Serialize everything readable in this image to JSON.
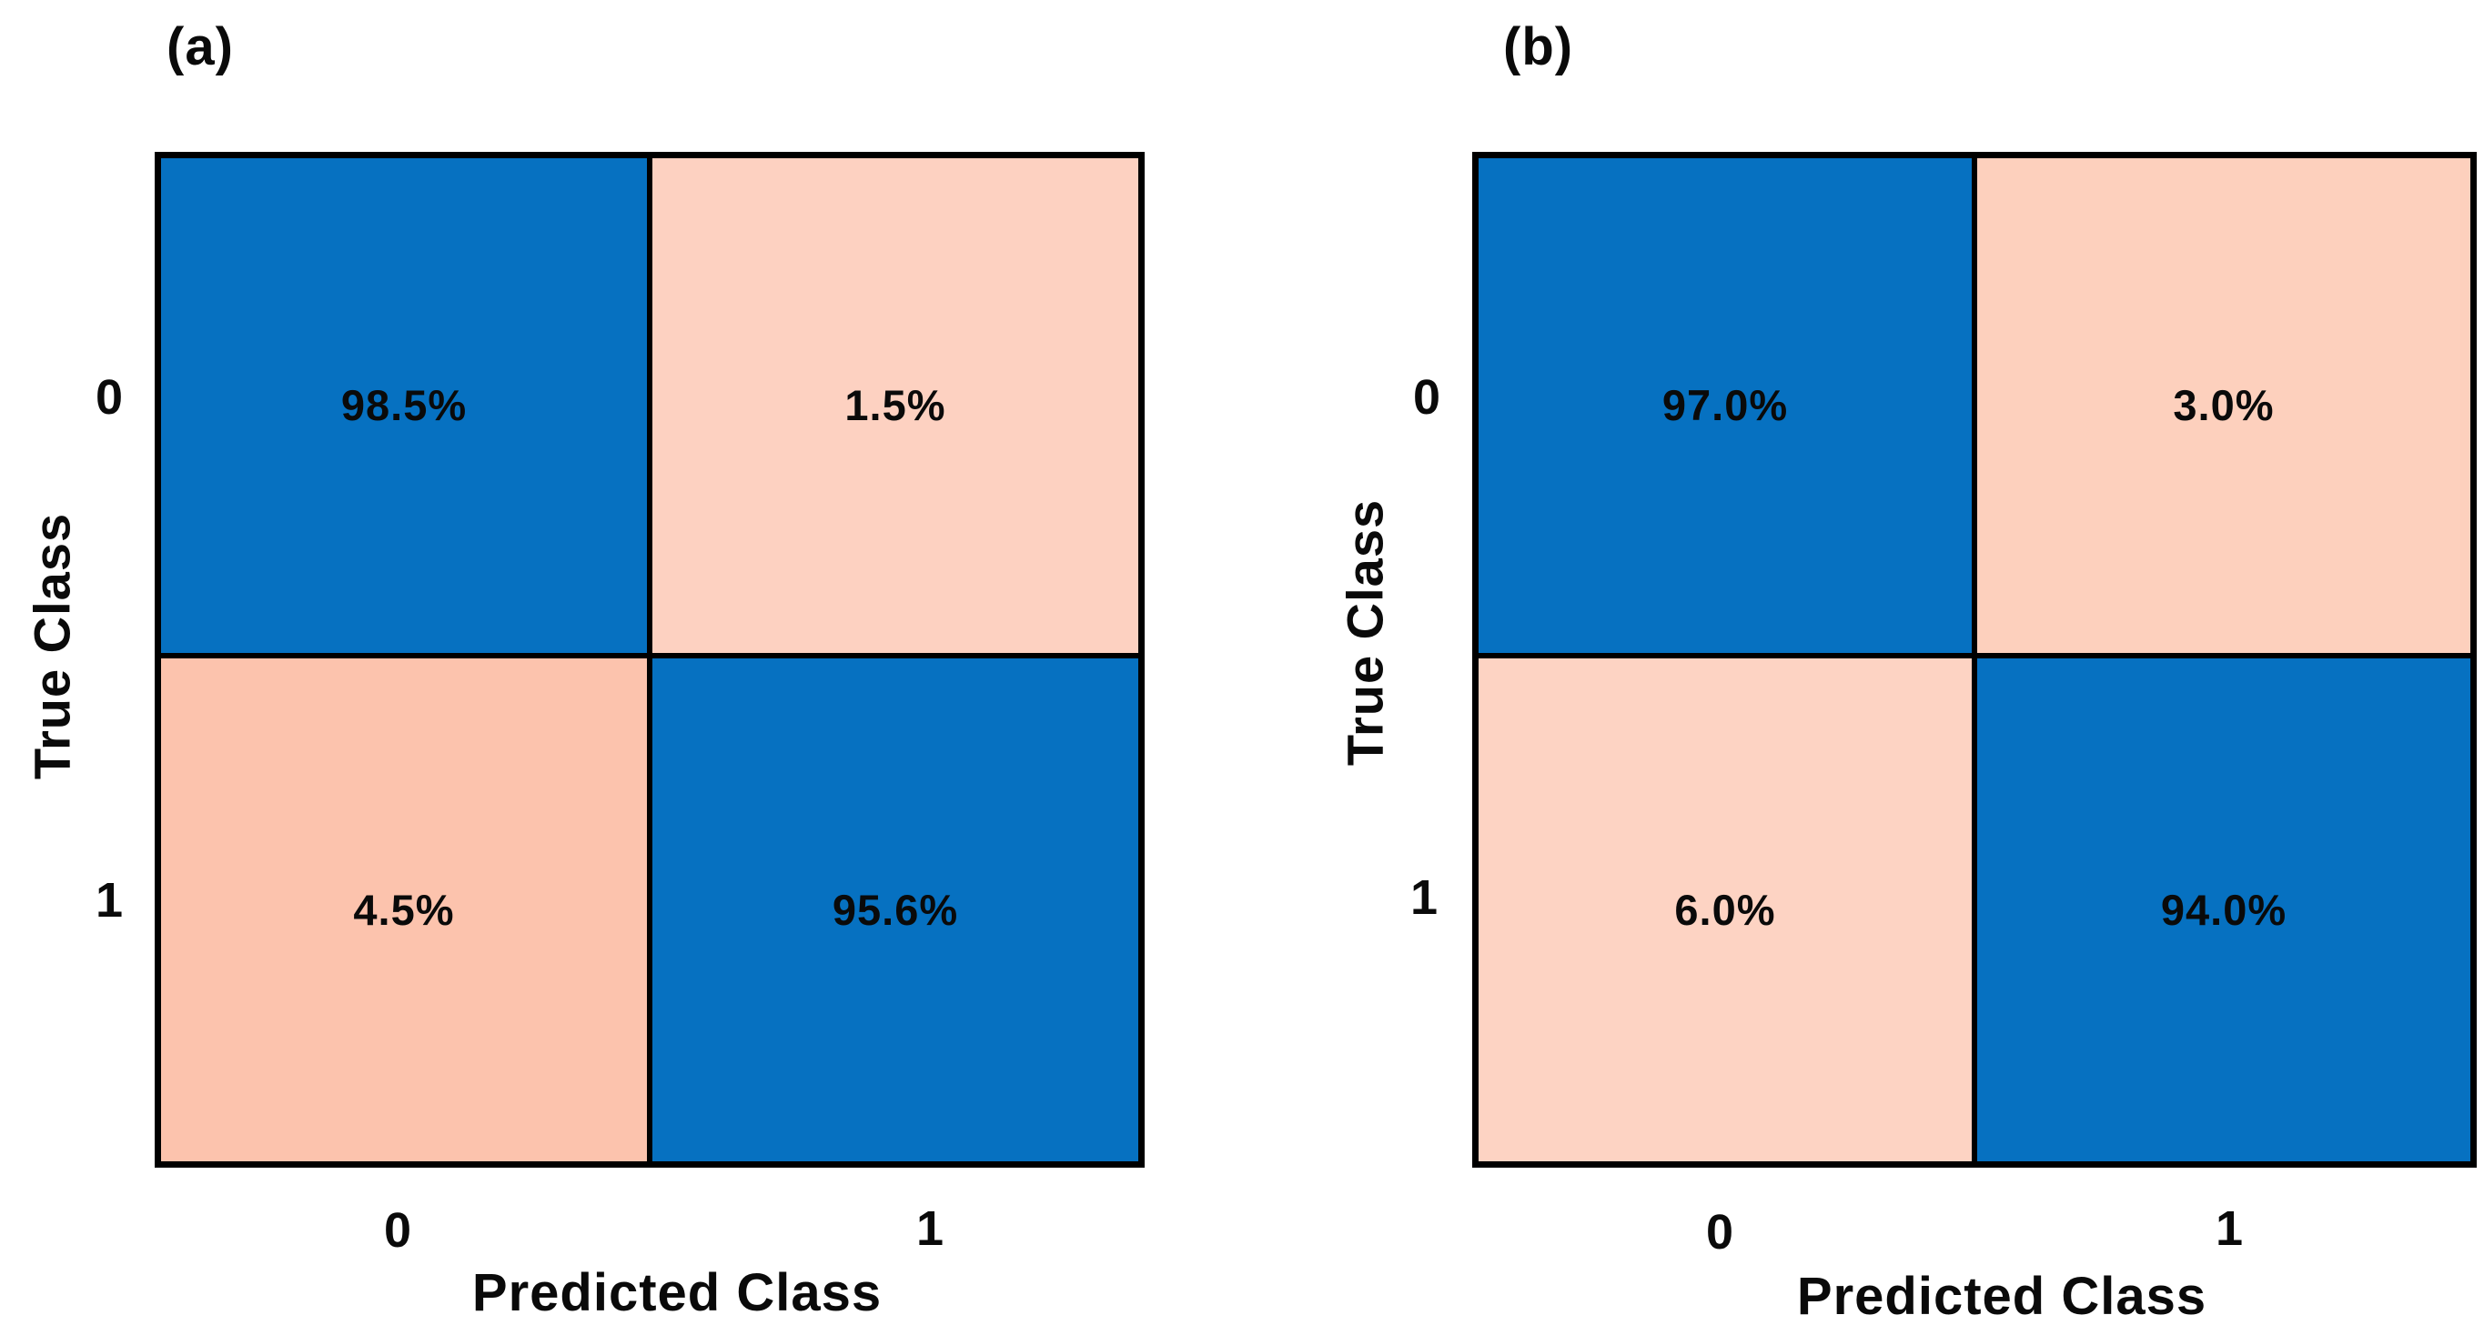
{
  "figure": {
    "background_color": "#ffffff",
    "text_color": "#0a0a0a",
    "grid_line_color": "#000000",
    "colors": {
      "diagonal_blue": "#0671c1",
      "off_diagonal_pink_light": "#fdd1c1",
      "off_diagonal_pink_dark": "#fcc3ad"
    },
    "panels": [
      {
        "title": "(a)",
        "x_axis_label": "Predicted Class",
        "y_axis_label": "True Class",
        "x_tick_labels": [
          "0",
          "1"
        ],
        "y_tick_labels": [
          "0",
          "1"
        ],
        "cells": [
          {
            "true_class": "0",
            "predicted_class": "0",
            "value": "98.5%",
            "color": "#0671c1"
          },
          {
            "true_class": "0",
            "predicted_class": "1",
            "value": "1.5%",
            "color": "#fdd1c1"
          },
          {
            "true_class": "1",
            "predicted_class": "0",
            "value": "4.5%",
            "color": "#fcc3ad"
          },
          {
            "true_class": "1",
            "predicted_class": "1",
            "value": "95.6%",
            "color": "#0671c1"
          }
        ]
      },
      {
        "title": "(b)",
        "x_axis_label": "Predicted Class",
        "y_axis_label": "True Class",
        "x_tick_labels": [
          "0",
          "1"
        ],
        "y_tick_labels": [
          "0",
          "1"
        ],
        "cells": [
          {
            "true_class": "0",
            "predicted_class": "0",
            "value": "97.0%",
            "color": "#0671c1"
          },
          {
            "true_class": "0",
            "predicted_class": "1",
            "value": "3.0%",
            "color": "#fdd0bd"
          },
          {
            "true_class": "1",
            "predicted_class": "0",
            "value": "6.0%",
            "color": "#fdd3c3"
          },
          {
            "true_class": "1",
            "predicted_class": "1",
            "value": "94.0%",
            "color": "#0671c1"
          }
        ]
      }
    ]
  },
  "chart_data": [
    {
      "type": "heatmap",
      "subtype": "confusion-matrix",
      "title": "(a)",
      "xlabel": "Predicted Class",
      "ylabel": "True Class",
      "x_categories": [
        "0",
        "1"
      ],
      "y_categories": [
        "0",
        "1"
      ],
      "values_percent": [
        [
          98.5,
          1.5
        ],
        [
          4.5,
          95.6
        ]
      ],
      "legend_position": "none",
      "grid": false,
      "color_rule": "diagonal cells blue (#0671c1), off-diagonal cells light peach"
    },
    {
      "type": "heatmap",
      "subtype": "confusion-matrix",
      "title": "(b)",
      "xlabel": "Predicted Class",
      "ylabel": "True Class",
      "x_categories": [
        "0",
        "1"
      ],
      "y_categories": [
        "0",
        "1"
      ],
      "values_percent": [
        [
          97.0,
          3.0
        ],
        [
          6.0,
          94.0
        ]
      ],
      "legend_position": "none",
      "grid": false,
      "color_rule": "diagonal cells blue (#0671c1), off-diagonal cells light peach"
    }
  ]
}
